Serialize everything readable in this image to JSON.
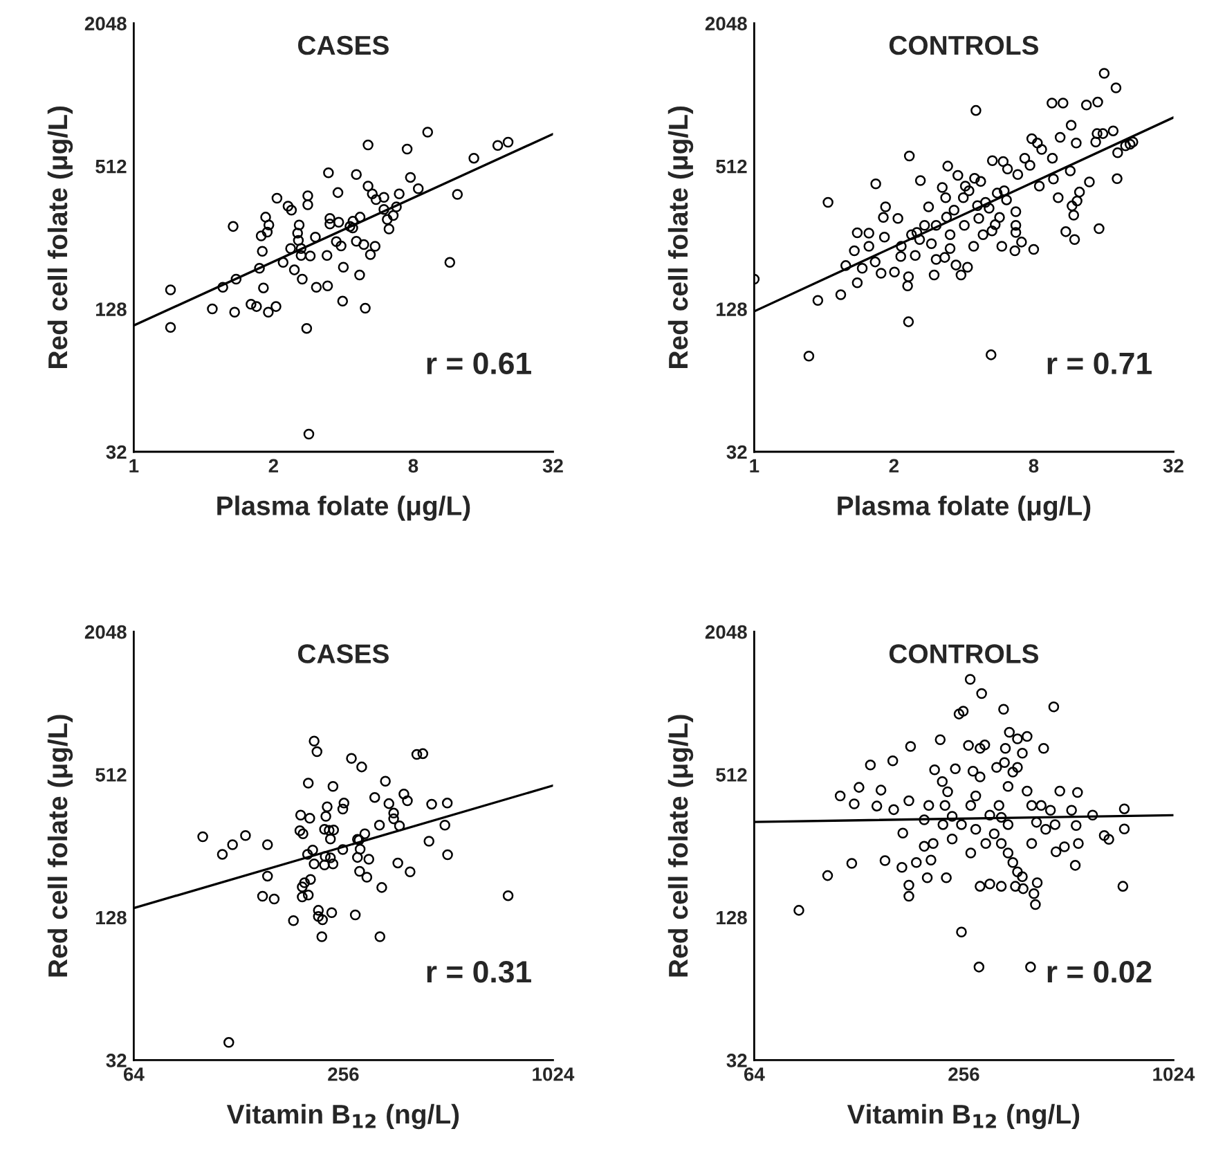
{
  "chart_data": [
    {
      "type": "scatter",
      "title": "CASES",
      "xlabel": "Plasma folate (μg/L)",
      "ylabel": "Red cell folate (μg/L)",
      "annotations": [
        "r = 0.61"
      ],
      "log": "xy",
      "marker": "circle",
      "xlim": [
        0.5,
        32
      ],
      "xticks": [
        {
          "value": 0.5,
          "label": "1"
        },
        2,
        8,
        32
      ],
      "ylim": [
        32,
        2048
      ],
      "yticks": [
        32,
        128,
        512,
        2048
      ],
      "series": [
        {
          "color": "#000000",
          "x": [
            0.72,
            0.72,
            1.09,
            1.36,
            1.21,
            1.38,
            1.34,
            1.6,
            1.69,
            1.9,
            2.05,
            1.81,
            1.74,
            1.79,
            1.77,
            1.88,
            1.91,
            1.85,
            2.07,
            2.31,
            2.39,
            2.81,
            2.81,
            2.58,
            2.54,
            2.56,
            2.37,
            2.63,
            2.63,
            2.88,
            2.2,
            2.46,
            2.66,
            3.06,
            3.42,
            2.78,
            2.84,
            3.03,
            3.4,
            3.5,
            3.5,
            3.82,
            3.79,
            3.45,
            3.73,
            3.91,
            4.0,
            3.97,
            4.7,
            4.97,
            4.39,
            4.27,
            4.4,
            4.72,
            4.55,
            4.9,
            5.23,
            5.48,
            5.11,
            4.55,
            5.11,
            5.33,
            5.53,
            5.98,
            5.98,
            6.18,
            6.29,
            6.56,
            6.77,
            6.96,
            7.53,
            7.78,
            8.41,
            9.23,
            12.4,
            11.5,
            14.6,
            18.5,
            20.5
          ],
          "values": [
            154,
            107,
            128,
            124,
            158,
            171,
            285,
            134,
            131,
            124,
            131,
            157,
            190,
            224,
            260,
            270,
            289,
            312,
            375,
            347,
            334,
            384,
            352,
            289,
            267,
            249,
            230,
            230,
            215,
            214,
            201,
            187,
            171,
            158,
            160,
            106,
            38,
            257,
            215,
            292,
            308,
            297,
            396,
            480,
            246,
            236,
            192,
            138,
            178,
            129,
            281,
            285,
            300,
            312,
            247,
            239,
            217,
            235,
            629,
            472,
            422,
            391,
            370,
            378,
            336,
            305,
            278,
            317,
            345,
            391,
            604,
            459,
            411,
            712,
            389,
            201,
            553,
            626,
            646
          ]
        },
        {
          "type": "line",
          "color": "#000000",
          "marker": "none",
          "line_style": "solid",
          "x": [
            0.5,
            32
          ],
          "values": [
            109,
            699
          ]
        }
      ]
    },
    {
      "type": "scatter",
      "title": "CONTROLS",
      "xlabel": "Plasma folate (μg/L)",
      "ylabel": "Red cell folate (μg/L)",
      "annotations": [
        "r = 0.71"
      ],
      "log": "xy",
      "marker": "circle",
      "xlim": [
        0.5,
        32
      ],
      "xticks": [
        {
          "value": 0.5,
          "label": "1"
        },
        2,
        8,
        32
      ],
      "ylim": [
        32,
        2048
      ],
      "yticks": [
        32,
        128,
        512,
        2048
      ],
      "series": [
        {
          "color": "#000000",
          "x": [
            0.5,
            0.94,
            1.18,
            0.86,
            2.31,
            5.24,
            1.04,
            1.67,
            2.33,
            2.6,
            3.41,
            4.51,
            1.39,
            1.56,
            1.35,
            1.24,
            1.39,
            1.46,
            1.66,
            1.76,
            1.56,
            1.8,
            1.84,
            2.01,
            2.14,
            2.29,
            2.31,
            2.98,
            3.04,
            3.31,
            3.7,
            3.89,
            4.15,
            2.15,
            2.38,
            2.51,
            2.71,
            2.82,
            3.23,
            3.37,
            3.63,
            3.77,
            3.98,
            4.21,
            4.45,
            4.58,
            4.64,
            5.14,
            5.29,
            5.46,
            5.7,
            5.83,
            6.64,
            7.09,
            8.0,
            5.31,
            5.91,
            6.17,
            6.83,
            7.32,
            7.85,
            8.3,
            8.66,
            7.71,
            8.46,
            9.73,
            10.2,
            11.5,
            11.7,
            11.9,
            12.3,
            12.6,
            13.9,
            11.0,
            12.0,
            15.3,
            9.63,
            10.4,
            11.6,
            12.2,
            14.8,
            15.0,
            15.9,
            17.6,
            18.4,
            18.3,
            19.9,
            21.4,
            20.8,
            9.59,
            10.7,
            13.5,
            15.1,
            16.1,
            18.1,
            3.04,
            3.49,
            4.02,
            4.84,
            6.11,
            6.7,
            5.57,
            4.96,
            6.7,
            2.9,
            2.47,
            1.82,
            2.08,
            4.41,
            3.49,
            6.7,
            4.06,
            4.73,
            3.34,
            5.97,
            2.58
          ],
          "values": [
            171,
            139,
            147,
            81,
            113,
            82,
            360,
            431,
            565,
            445,
            512,
            879,
            268,
            267,
            225,
            195,
            165,
            190,
            202,
            181,
            235,
            311,
            345,
            183,
            213,
            160,
            175,
            178,
            207,
            211,
            196,
            178,
            192,
            235,
            263,
            269,
            288,
            345,
            416,
            312,
            334,
            468,
            377,
            403,
            455,
            349,
            308,
            340,
            273,
            290,
            311,
            235,
            225,
            245,
            228,
            540,
            535,
            498,
            472,
            553,
            668,
            641,
            602,
            516,
            422,
            452,
            377,
            489,
            348,
            318,
            365,
            398,
            439,
            271,
            251,
            279,
            553,
            677,
            761,
            641,
            647,
            702,
            702,
            721,
            583,
            453,
            624,
            647,
            633,
            944,
            944,
            927,
            953,
            1260,
            1095,
            288,
            263,
            288,
            263,
            369,
            329,
            394,
            360,
            269,
            241,
            215,
            257,
            308,
            235,
            230,
            288,
            422,
            441,
            377,
            403,
            251
          ]
        },
        {
          "type": "line",
          "color": "#000000",
          "marker": "none",
          "line_style": "solid",
          "x": [
            0.5,
            32
          ],
          "values": [
            125,
            821
          ]
        }
      ]
    },
    {
      "type": "scatter",
      "title": "CASES",
      "xlabel": "Vitamin B$_{12}$ (ng/L)",
      "ylabel": "Red cell folate (μg/L)",
      "annotations": [
        "r = 0.31"
      ],
      "log": "xy",
      "marker": "circle",
      "xlim": [
        64,
        1024
      ],
      "xticks": [
        64,
        256,
        1024
      ],
      "ylim": [
        32,
        2048
      ],
      "yticks": [
        32,
        128,
        512,
        2048
      ],
      "series": [
        {
          "color": "#000000",
          "x": [
            101,
            115,
            123,
            134,
            155,
            155,
            150,
            162,
            184,
            120,
            203,
            193,
            205,
            192,
            196,
            202,
            209,
            211,
            195,
            198,
            206,
            203,
            195,
            217,
            217,
            223,
            237,
            222,
            211,
            215,
            239,
            230,
            228,
            226,
            233,
            240,
            235,
            227,
            226,
            239,
            235,
            255,
            257,
            255,
            270,
            289,
            277,
            281,
            284,
            286,
            281,
            295,
            303,
            285,
            299,
            315,
            325,
            338,
            346,
            357,
            357,
            371,
            382,
            391,
            330,
            367,
            398,
            326,
            416,
            433,
            459,
            501,
            509,
            451,
            510,
            761
          ],
          "values": [
            280,
            236,
            259,
            283,
            259,
            191,
            157,
            153,
            124,
            38,
            471,
            345,
            335,
            297,
            288,
            236,
            246,
            215,
            172,
            179,
            185,
            159,
            156,
            137,
            129,
            125,
            134,
            106,
            708,
            639,
            456,
            374,
            341,
            301,
            298,
            299,
            274,
            231,
            213,
            215,
            228,
            247,
            388,
            366,
            599,
            551,
            131,
            273,
            271,
            248,
            229,
            288,
            225,
            200,
            189,
            410,
            313,
            480,
            386,
            352,
            333,
            311,
            424,
            397,
            171,
            217,
            199,
            106,
            622,
            627,
            384,
            313,
            388,
            268,
            235,
            158
          ]
        },
        {
          "type": "line",
          "color": "#000000",
          "marker": "none",
          "line_style": "solid",
          "x": [
            64,
            1024
          ],
          "values": [
            140,
            460
          ]
        }
      ]
    },
    {
      "type": "scatter",
      "title": "CONTROLS",
      "xlabel": "Vitamin B$_{12}$ (ng/L)",
      "ylabel": "Red cell folate (μg/L)",
      "annotations": [
        "r = 0.02"
      ],
      "log": "xy",
      "marker": "circle",
      "xlim": [
        64,
        1024
      ],
      "xticks": [
        64,
        256,
        1024
      ],
      "ylim": [
        32,
        2048
      ],
      "yticks": [
        32,
        128,
        512,
        2048
      ],
      "series": [
        {
          "color": "#000000",
          "x": [
            86,
            104,
            122,
            113,
            124,
            128,
            144,
            148,
            138,
            160,
            161,
            152,
            171,
            178,
            180,
            170,
            178,
            178,
            187,
            201,
            197,
            206,
            203,
            211,
            219,
            222,
            230,
            228,
            237,
            242,
            248,
            255,
            252,
            264,
            267,
            283,
            288,
            294,
            272,
            277,
            285,
            268,
            252,
            277,
            296,
            268,
            237,
            223,
            285,
            304,
            328,
            333,
            346,
            337,
            335,
            354,
            343,
            323,
            328,
            343,
            313,
            328,
            343,
            354,
            365,
            377,
            360,
            379,
            407,
            416,
            411,
            398,
            464,
            434,
            365,
            389,
            377,
            365,
            389,
            427,
            454,
            483,
            401,
            414,
            440,
            468,
            471,
            498,
            522,
            543,
            538,
            546,
            535,
            600,
            648,
            668,
            740,
            740,
            733,
            401,
            304,
            226,
            197,
            209,
            285,
            318
          ],
          "values": [
            137,
            192,
            216,
            416,
            385,
            452,
            377,
            440,
            562,
            585,
            364,
            222,
            290,
            397,
            672,
            208,
            175,
            157,
            218,
            188,
            255,
            223,
            379,
            536,
            718,
            478,
            433,
            188,
            341,
            541,
            921,
            947,
            111,
            679,
            1290,
            79,
            1123,
            682,
            529,
            416,
            500,
            379,
            315,
            301,
            262,
            239,
            274,
            315,
            173,
            177,
            173,
            964,
            772,
            660,
            575,
            524,
            456,
            379,
            338,
            315,
            288,
            262,
            239,
            218,
            199,
            190,
            173,
            169,
            161,
            179,
            145,
            79,
            987,
            660,
            724,
            741,
            630,
            549,
            436,
            379,
            362,
            436,
            379,
            322,
            301,
            315,
            242,
            254,
            362,
            430,
            312,
            262,
            212,
            345,
            283,
            273,
            367,
            302,
            173,
            262,
            345,
            379,
            330,
            262,
            660,
            549
          ]
        },
        {
          "type": "line",
          "color": "#000000",
          "marker": "none",
          "line_style": "solid",
          "x": [
            64,
            1024
          ],
          "values": [
            323,
            345
          ]
        }
      ]
    }
  ]
}
